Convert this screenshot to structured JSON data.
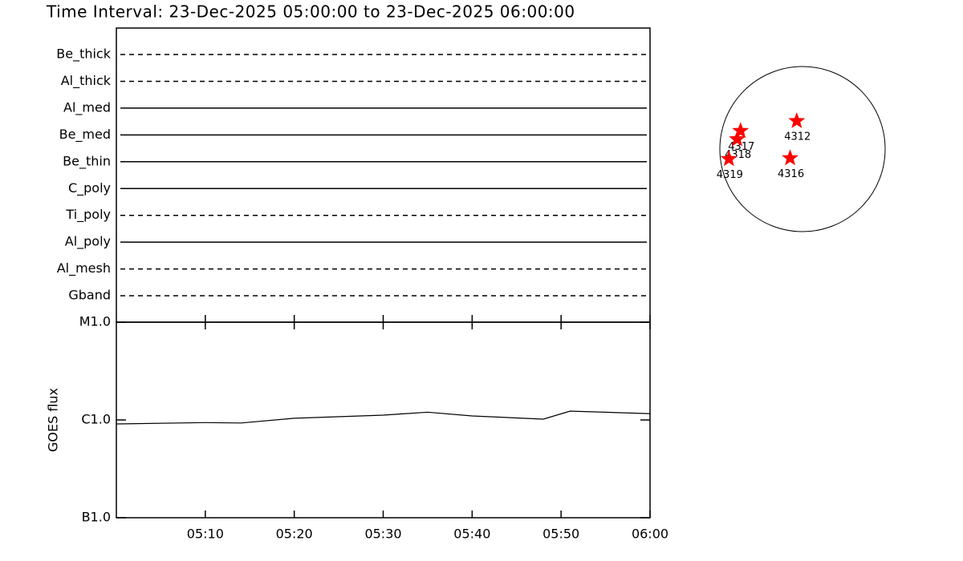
{
  "title": "Time Interval: 23-Dec-2025 05:00:00 to 23-Dec-2025 06:00:00",
  "chart_data": [
    {
      "type": "timeline",
      "categories": [
        "Be_thick",
        "Al_thick",
        "Al_med",
        "Be_med",
        "Be_thin",
        "C_poly",
        "Ti_poly",
        "Al_poly",
        "Al_mesh",
        "Gband"
      ],
      "line_styles": [
        "dashed",
        "dashed",
        "solid",
        "solid",
        "solid",
        "solid",
        "dashed",
        "solid",
        "dashed",
        "dashed"
      ],
      "color": "#000000"
    },
    {
      "type": "line",
      "y_label": "GOES flux",
      "log_scale": true,
      "x": [
        "05:00",
        "05:10",
        "05:14",
        "05:20",
        "05:30",
        "05:35",
        "05:40",
        "05:48",
        "05:51",
        "06:00"
      ],
      "values": [
        9.1e-07,
        9.4e-07,
        9.3e-07,
        1.04e-06,
        1.12e-06,
        1.2e-06,
        1.1e-06,
        1.02e-06,
        1.23e-06,
        1.16e-06
      ],
      "color": "#000000",
      "xlim": [
        "05:00",
        "06:00"
      ],
      "xticks": [
        "05:10",
        "05:20",
        "05:30",
        "05:40",
        "05:50",
        "06:00"
      ],
      "ylim": [
        1e-07,
        1e-05
      ],
      "yticks": [
        {
          "value": 1e-07,
          "label": "B1.0"
        },
        {
          "value": 1e-06,
          "label": "C1.0"
        },
        {
          "value": 1e-05,
          "label": "M1.0"
        }
      ]
    },
    {
      "type": "scatter",
      "labels": [
        "4312",
        "4316",
        "4317",
        "4318",
        "4319"
      ],
      "x": [
        -0.07,
        -0.15,
        -0.75,
        -0.79,
        -0.89
      ],
      "values": [
        0.34,
        -0.11,
        0.22,
        0.12,
        -0.12
      ],
      "color": "#ff0000",
      "xlim": [
        -1,
        1
      ],
      "ylim": [
        -1,
        1
      ]
    }
  ]
}
